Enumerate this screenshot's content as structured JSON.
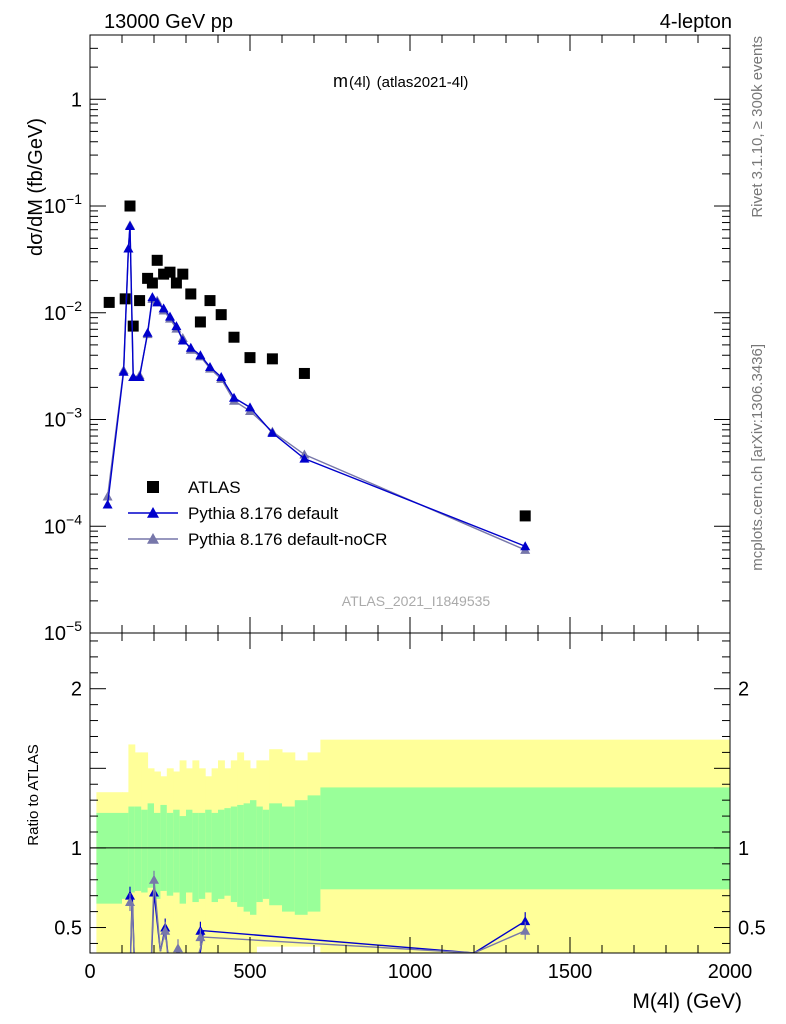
{
  "header": {
    "left": "13000 GeV pp",
    "right": "4-lepton"
  },
  "side_text": {
    "rivet": "Rivet 3.1.10, ≥ 300k events",
    "mcplots": "mcplots.cern.ch [arXiv:1306.3436]"
  },
  "title": {
    "main": "m",
    "sub": "(4l)",
    "tag": "(atlas2021-4l)"
  },
  "watermark": "ATLAS_2021_I1849535",
  "colors": {
    "data": "#000000",
    "default": "#0000cc",
    "nocr": "#7777aa",
    "band_inner": "#99ff99",
    "band_outer": "#ffff99"
  },
  "chart_data": [
    {
      "type": "scatter",
      "name": "main",
      "xlim": [
        0,
        2000
      ],
      "ylim": [
        1e-05,
        4
      ],
      "log_y": true,
      "ylabel": "dσ/dM (fb/GeV)",
      "yticks": [
        {
          "value": 1,
          "label": "1",
          "exp": ""
        },
        {
          "value": 0.1,
          "label": "10",
          "exp": "−1"
        },
        {
          "value": 0.01,
          "label": "10",
          "exp": "−2"
        },
        {
          "value": 0.001,
          "label": "10",
          "exp": "−3"
        },
        {
          "value": 0.0001,
          "label": "10",
          "exp": "−4"
        },
        {
          "value": 1e-05,
          "label": "10",
          "exp": "−5"
        }
      ],
      "legend": [
        "ATLAS",
        "Pythia 8.176 default",
        "Pythia 8.176 default-noCR"
      ],
      "series": [
        {
          "name": "ATLAS",
          "x": [
            60,
            110,
            125,
            135,
            155,
            180,
            195,
            210,
            230,
            250,
            270,
            290,
            315,
            345,
            375,
            410,
            450,
            500,
            570,
            670,
            1360
          ],
          "y": [
            0.0125,
            0.0135,
            0.1,
            0.0075,
            0.013,
            0.021,
            0.019,
            0.031,
            0.023,
            0.024,
            0.019,
            0.023,
            0.015,
            0.0082,
            0.013,
            0.0096,
            0.0059,
            0.0038,
            0.0037,
            0.0027,
            0.000125
          ]
        },
        {
          "name": "Pythia 8.176 default",
          "x": [
            55,
            105,
            120,
            125,
            135,
            155,
            180,
            195,
            210,
            230,
            250,
            270,
            290,
            315,
            345,
            375,
            410,
            450,
            500,
            570,
            670,
            1360
          ],
          "y": [
            0.00016,
            0.0028,
            0.04,
            0.065,
            0.0025,
            0.0025,
            0.0065,
            0.014,
            0.0125,
            0.011,
            0.0092,
            0.0075,
            0.0055,
            0.0047,
            0.004,
            0.0031,
            0.0025,
            0.0016,
            0.0013,
            0.00075,
            0.00043,
            6.5e-05
          ]
        },
        {
          "name": "Pythia 8.176 default-noCR",
          "x": [
            55,
            105,
            120,
            125,
            135,
            155,
            180,
            195,
            210,
            230,
            250,
            270,
            290,
            315,
            345,
            375,
            410,
            450,
            500,
            570,
            670,
            1360
          ],
          "y": [
            0.00019,
            0.0029,
            0.04,
            0.066,
            0.0025,
            0.0026,
            0.0063,
            0.0135,
            0.013,
            0.0105,
            0.0088,
            0.0071,
            0.0058,
            0.0045,
            0.0039,
            0.003,
            0.0024,
            0.0015,
            0.0012,
            0.00077,
            0.00047,
            6e-05
          ]
        }
      ]
    },
    {
      "type": "line",
      "name": "ratio",
      "xlim": [
        0,
        2000
      ],
      "ylim": [
        0.34,
        2.35
      ],
      "ylabel": "Ratio to ATLAS",
      "xlabel": "M(4l) (GeV)",
      "xticks": [
        0,
        500,
        1000,
        1500,
        2000
      ],
      "yticks": [
        0.5,
        1,
        2
      ],
      "reference_line": 1,
      "band_edges": [
        20,
        100,
        120,
        140,
        160,
        180,
        200,
        220,
        240,
        260,
        280,
        300,
        320,
        340,
        360,
        380,
        400,
        420,
        440,
        460,
        480,
        500,
        520,
        540,
        560,
        600,
        640,
        680,
        720,
        2000
      ],
      "band_outer_lo": [
        0.3,
        0.3,
        0.3,
        0.3,
        0.3,
        0.3,
        0.3,
        0.3,
        0.3,
        0.3,
        0.3,
        0.3,
        0.3,
        0.3,
        0.3,
        0.3,
        0.3,
        0.3,
        0.3,
        0.3,
        0.3,
        0.3,
        0.38,
        0.38,
        0.38,
        0.38,
        0.38,
        0.38,
        0.3
      ],
      "band_outer_hi": [
        1.35,
        1.35,
        1.65,
        1.6,
        1.6,
        1.5,
        1.48,
        1.45,
        1.5,
        1.48,
        1.55,
        1.5,
        1.55,
        1.5,
        1.45,
        1.5,
        1.55,
        1.5,
        1.55,
        1.6,
        1.55,
        1.5,
        1.55,
        1.55,
        1.62,
        1.6,
        1.55,
        1.6,
        1.68
      ],
      "band_inner_lo": [
        0.65,
        0.68,
        0.72,
        0.73,
        0.72,
        0.75,
        0.68,
        0.73,
        0.7,
        0.72,
        0.65,
        0.72,
        0.66,
        0.68,
        0.72,
        0.66,
        0.68,
        0.7,
        0.66,
        0.63,
        0.6,
        0.58,
        0.66,
        0.68,
        0.64,
        0.6,
        0.58,
        0.6,
        0.74
      ],
      "band_inner_hi": [
        1.22,
        1.22,
        1.26,
        1.26,
        1.24,
        1.28,
        1.22,
        1.27,
        1.22,
        1.24,
        1.2,
        1.24,
        1.22,
        1.22,
        1.24,
        1.22,
        1.24,
        1.25,
        1.26,
        1.27,
        1.28,
        1.3,
        1.26,
        1.24,
        1.28,
        1.26,
        1.3,
        1.33,
        1.38
      ],
      "series": [
        {
          "name": "Pythia 8.176 default",
          "x": [
            125,
            132,
            140,
            190,
            200,
            220,
            235,
            250,
            275,
            300,
            320,
            345,
            355,
            1200,
            1360
          ],
          "y": [
            0.2,
            0.7,
            0.2,
            0.2,
            0.72,
            0.35,
            0.5,
            0.2,
            0.35,
            0.2,
            0.2,
            0.35,
            0.48,
            0.34,
            0.54
          ],
          "markers_x": [
            125,
            200,
            235,
            345,
            1360
          ],
          "markers_y": [
            0.7,
            0.72,
            0.5,
            0.48,
            0.54
          ]
        },
        {
          "name": "Pythia 8.176 default-noCR",
          "x": [
            125,
            132,
            140,
            190,
            200,
            220,
            235,
            250,
            275,
            300,
            320,
            345,
            355,
            1200,
            1360
          ],
          "y": [
            0.2,
            0.66,
            0.2,
            0.2,
            0.8,
            0.35,
            0.48,
            0.2,
            0.37,
            0.2,
            0.2,
            0.37,
            0.44,
            0.34,
            0.48
          ],
          "markers_x": [
            125,
            200,
            235,
            275,
            345,
            1360
          ],
          "markers_y": [
            0.66,
            0.8,
            0.48,
            0.37,
            0.44,
            0.48
          ]
        }
      ]
    }
  ]
}
